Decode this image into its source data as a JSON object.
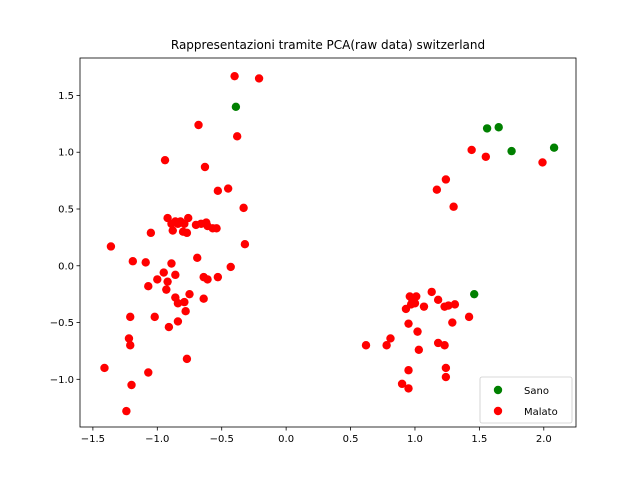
{
  "chart_data": {
    "type": "scatter",
    "title": "Rappresentazioni tramite PCA(raw data) switzerland",
    "xlabel": "",
    "ylabel": "",
    "xlim": [
      -1.6,
      2.25
    ],
    "ylim": [
      -1.42,
      1.83
    ],
    "x_ticks": [
      -1.5,
      -1.0,
      -0.5,
      0.0,
      0.5,
      1.0,
      1.5,
      2.0
    ],
    "y_ticks": [
      -1.0,
      -0.5,
      0.0,
      0.5,
      1.0,
      1.5
    ],
    "x_tick_labels": [
      "−1.5",
      "−1.0",
      "−0.5",
      "0.0",
      "0.5",
      "1.0",
      "1.5",
      "2.0"
    ],
    "y_tick_labels": [
      "−1.0",
      "−0.5",
      "0.0",
      "0.5",
      "1.0",
      "1.5"
    ],
    "grid": false,
    "legend_position": "lower-right",
    "series": [
      {
        "name": "Sano",
        "color": "#008000",
        "points": [
          [
            -0.39,
            1.4
          ],
          [
            1.56,
            1.21
          ],
          [
            1.65,
            1.22
          ],
          [
            1.75,
            1.01
          ],
          [
            2.08,
            1.04
          ],
          [
            1.46,
            -0.25
          ]
        ]
      },
      {
        "name": "Malato",
        "color": "#ff0000",
        "points": [
          [
            -0.4,
            1.67
          ],
          [
            -0.21,
            1.65
          ],
          [
            -0.68,
            1.24
          ],
          [
            -0.38,
            1.14
          ],
          [
            -0.94,
            0.93
          ],
          [
            -0.63,
            0.87
          ],
          [
            -0.53,
            0.66
          ],
          [
            -0.45,
            0.68
          ],
          [
            -0.33,
            0.51
          ],
          [
            -1.36,
            0.17
          ],
          [
            -1.05,
            0.29
          ],
          [
            -0.92,
            0.42
          ],
          [
            -0.89,
            0.37
          ],
          [
            -0.86,
            0.39
          ],
          [
            -0.82,
            0.39
          ],
          [
            -0.79,
            0.37
          ],
          [
            -0.76,
            0.42
          ],
          [
            -0.88,
            0.31
          ],
          [
            -0.8,
            0.3
          ],
          [
            -0.7,
            0.36
          ],
          [
            -0.66,
            0.37
          ],
          [
            -0.61,
            0.35
          ],
          [
            -0.57,
            0.33
          ],
          [
            -0.54,
            0.33
          ],
          [
            -0.62,
            0.38
          ],
          [
            -0.32,
            0.19
          ],
          [
            -0.84,
            0.37
          ],
          [
            -0.77,
            0.29
          ],
          [
            -1.19,
            0.04
          ],
          [
            -1.09,
            0.03
          ],
          [
            -0.89,
            0.02
          ],
          [
            -0.69,
            0.07
          ],
          [
            -0.43,
            -0.01
          ],
          [
            -0.95,
            -0.06
          ],
          [
            -1.0,
            -0.12
          ],
          [
            -0.92,
            -0.14
          ],
          [
            -0.86,
            -0.08
          ],
          [
            -0.64,
            -0.1
          ],
          [
            -0.61,
            -0.12
          ],
          [
            -0.53,
            -0.1
          ],
          [
            -1.07,
            -0.18
          ],
          [
            -0.93,
            -0.21
          ],
          [
            -0.75,
            -0.25
          ],
          [
            -0.86,
            -0.28
          ],
          [
            -0.84,
            -0.33
          ],
          [
            -0.79,
            -0.32
          ],
          [
            -0.64,
            -0.29
          ],
          [
            -0.78,
            -0.4
          ],
          [
            -1.21,
            -0.45
          ],
          [
            -1.02,
            -0.45
          ],
          [
            -0.84,
            -0.49
          ],
          [
            -0.91,
            -0.54
          ],
          [
            -1.22,
            -0.64
          ],
          [
            -1.21,
            -0.7
          ],
          [
            -0.77,
            -0.82
          ],
          [
            -1.41,
            -0.9
          ],
          [
            -1.07,
            -0.94
          ],
          [
            -1.2,
            -1.05
          ],
          [
            -1.24,
            -1.28
          ],
          [
            1.17,
            0.67
          ],
          [
            1.24,
            0.76
          ],
          [
            1.3,
            0.52
          ],
          [
            1.44,
            1.02
          ],
          [
            1.55,
            0.96
          ],
          [
            1.99,
            0.91
          ],
          [
            0.96,
            -0.27
          ],
          [
            0.98,
            -0.3
          ],
          [
            1.01,
            -0.27
          ],
          [
            0.93,
            -0.38
          ],
          [
            0.97,
            -0.34
          ],
          [
            1.0,
            -0.33
          ],
          [
            1.07,
            -0.36
          ],
          [
            1.13,
            -0.23
          ],
          [
            1.18,
            -0.3
          ],
          [
            1.26,
            -0.35
          ],
          [
            1.31,
            -0.34
          ],
          [
            1.23,
            -0.36
          ],
          [
            0.95,
            -0.51
          ],
          [
            1.02,
            -0.58
          ],
          [
            1.29,
            -0.5
          ],
          [
            1.42,
            -0.45
          ],
          [
            0.62,
            -0.7
          ],
          [
            0.78,
            -0.7
          ],
          [
            0.81,
            -0.64
          ],
          [
            1.03,
            -0.74
          ],
          [
            1.18,
            -0.68
          ],
          [
            1.23,
            -0.7
          ],
          [
            0.9,
            -1.04
          ],
          [
            0.95,
            -0.92
          ],
          [
            0.95,
            -1.08
          ],
          [
            1.24,
            -0.9
          ],
          [
            1.24,
            -0.98
          ]
        ]
      }
    ]
  }
}
